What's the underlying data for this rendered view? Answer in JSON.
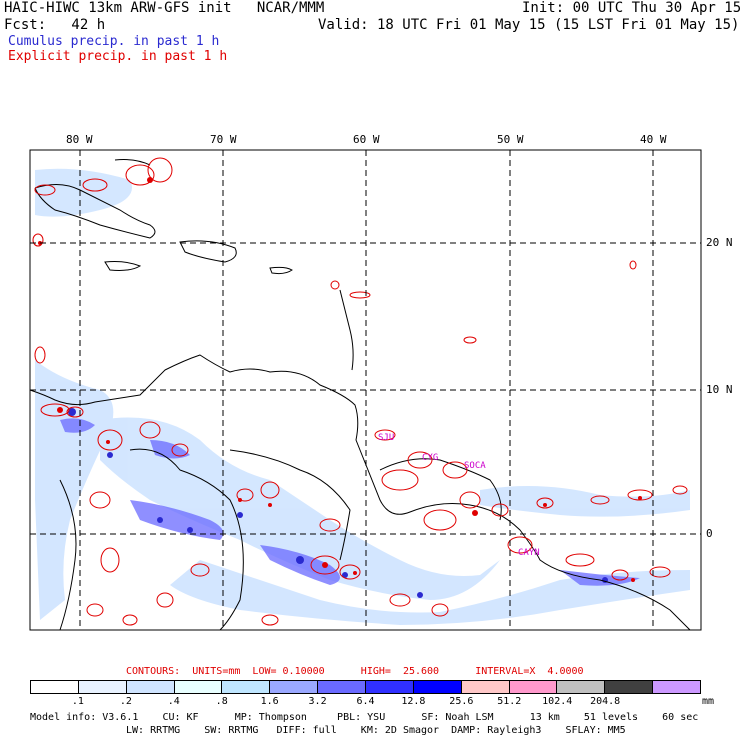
{
  "header": {
    "line1": "HAIC-HIWC 13km ARW-GFS init   NCAR/MMM",
    "line2": "Fcst:   42 h",
    "line3": "Cumulus precip. in past 1 h",
    "line4": "Explicit precip. in past 1 h",
    "init": "Init: 00 UTC Thu 30 Apr 15",
    "valid": "Valid: 18 UTC Fri 01 May 15 (15 LST Fri 01 May 15)",
    "cumulus_color": "#2a2ad0",
    "explicit_color": "#e00000"
  },
  "map": {
    "lon_labels": [
      "80 W",
      "70 W",
      "60 W",
      "50 W",
      "40 W"
    ],
    "lat_labels": [
      "20 N",
      "10 N",
      "0"
    ],
    "station_labels": [
      "SJU",
      "CYG",
      "SOCA",
      "CAYN"
    ]
  },
  "legend": {
    "contours": "CONTOURS:  UNITS=mm  LOW= 0.10000      HIGH=  25.600      INTERVAL=X  4.0000",
    "colors": [
      "#ffffff",
      "#e8f2ff",
      "#cfe4ff",
      "#e8ffff",
      "#bfe6ff",
      "#9aa8ff",
      "#6a6aff",
      "#3030ff",
      "#0000ff",
      "#ffc8c8",
      "#ff99cc",
      "#c0c0c0",
      "#404040",
      "#cc99ff"
    ],
    "ticks": [
      ".1",
      ".2",
      ".4",
      ".8",
      "1.6",
      "3.2",
      "6.4",
      "12.8",
      "25.6",
      "51.2",
      "102.4",
      "204.8"
    ],
    "unit": "mm"
  },
  "model_info": {
    "line1": "Model info: V3.6.1    CU: KF      MP: Thompson     PBL: YSU      SF: Noah LSM      13 km    51 levels    60 sec",
    "line2": "LW: RRTMG    SW: RRTMG   DIFF: full    KM: 2D Smagor  DAMP: Rayleigh3    SFLAY: MM5"
  }
}
